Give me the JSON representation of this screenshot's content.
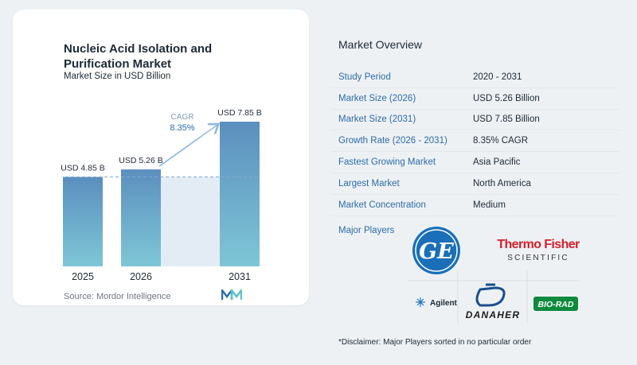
{
  "chart_data": {
    "type": "bar",
    "title": "Nucleic Acid Isolation and Purification Market",
    "subtitle": "Market Size in USD Billion",
    "categories": [
      "2025",
      "2026",
      "2031"
    ],
    "values": [
      4.85,
      5.26,
      7.85
    ],
    "value_labels": [
      "USD 4.85 B",
      "USD 5.26 B",
      "USD 7.85 B"
    ],
    "cagr_label": "CAGR",
    "cagr_value": "8.35%",
    "ylim": [
      0,
      8.5
    ],
    "grid": false,
    "colors": {
      "bar_top": "#5b8fbe",
      "bar_bottom": "#7ec6d6",
      "arrow": "#8fb8dc",
      "ref_line": "#7fa9cf",
      "area": "#e3ecf5"
    }
  },
  "source": "Source:  Mordor Intelligence",
  "overview": {
    "title": "Market Overview",
    "rows": [
      {
        "label": "Study Period",
        "value": "2020 - 2031"
      },
      {
        "label": "Market Size (2026)",
        "value": "USD 5.26 Billion"
      },
      {
        "label": "Market Size (2031)",
        "value": "USD 7.85 Billion"
      },
      {
        "label": "Growth Rate (2026 - 2031)",
        "value": "8.35% CAGR"
      },
      {
        "label": "Fastest Growing Market",
        "value": "Asia Pacific"
      },
      {
        "label": "Largest Market",
        "value": "North America"
      },
      {
        "label": "Market Concentration",
        "value": "Medium"
      }
    ]
  },
  "major_players": {
    "label": "Major Players",
    "logos": [
      "GE",
      "Thermo Fisher",
      "SCIENTIFIC",
      "Agilent",
      "DANAHER",
      "BIO-RAD"
    ]
  },
  "disclaimer": "*Disclaimer: Major Players sorted in no particular order"
}
